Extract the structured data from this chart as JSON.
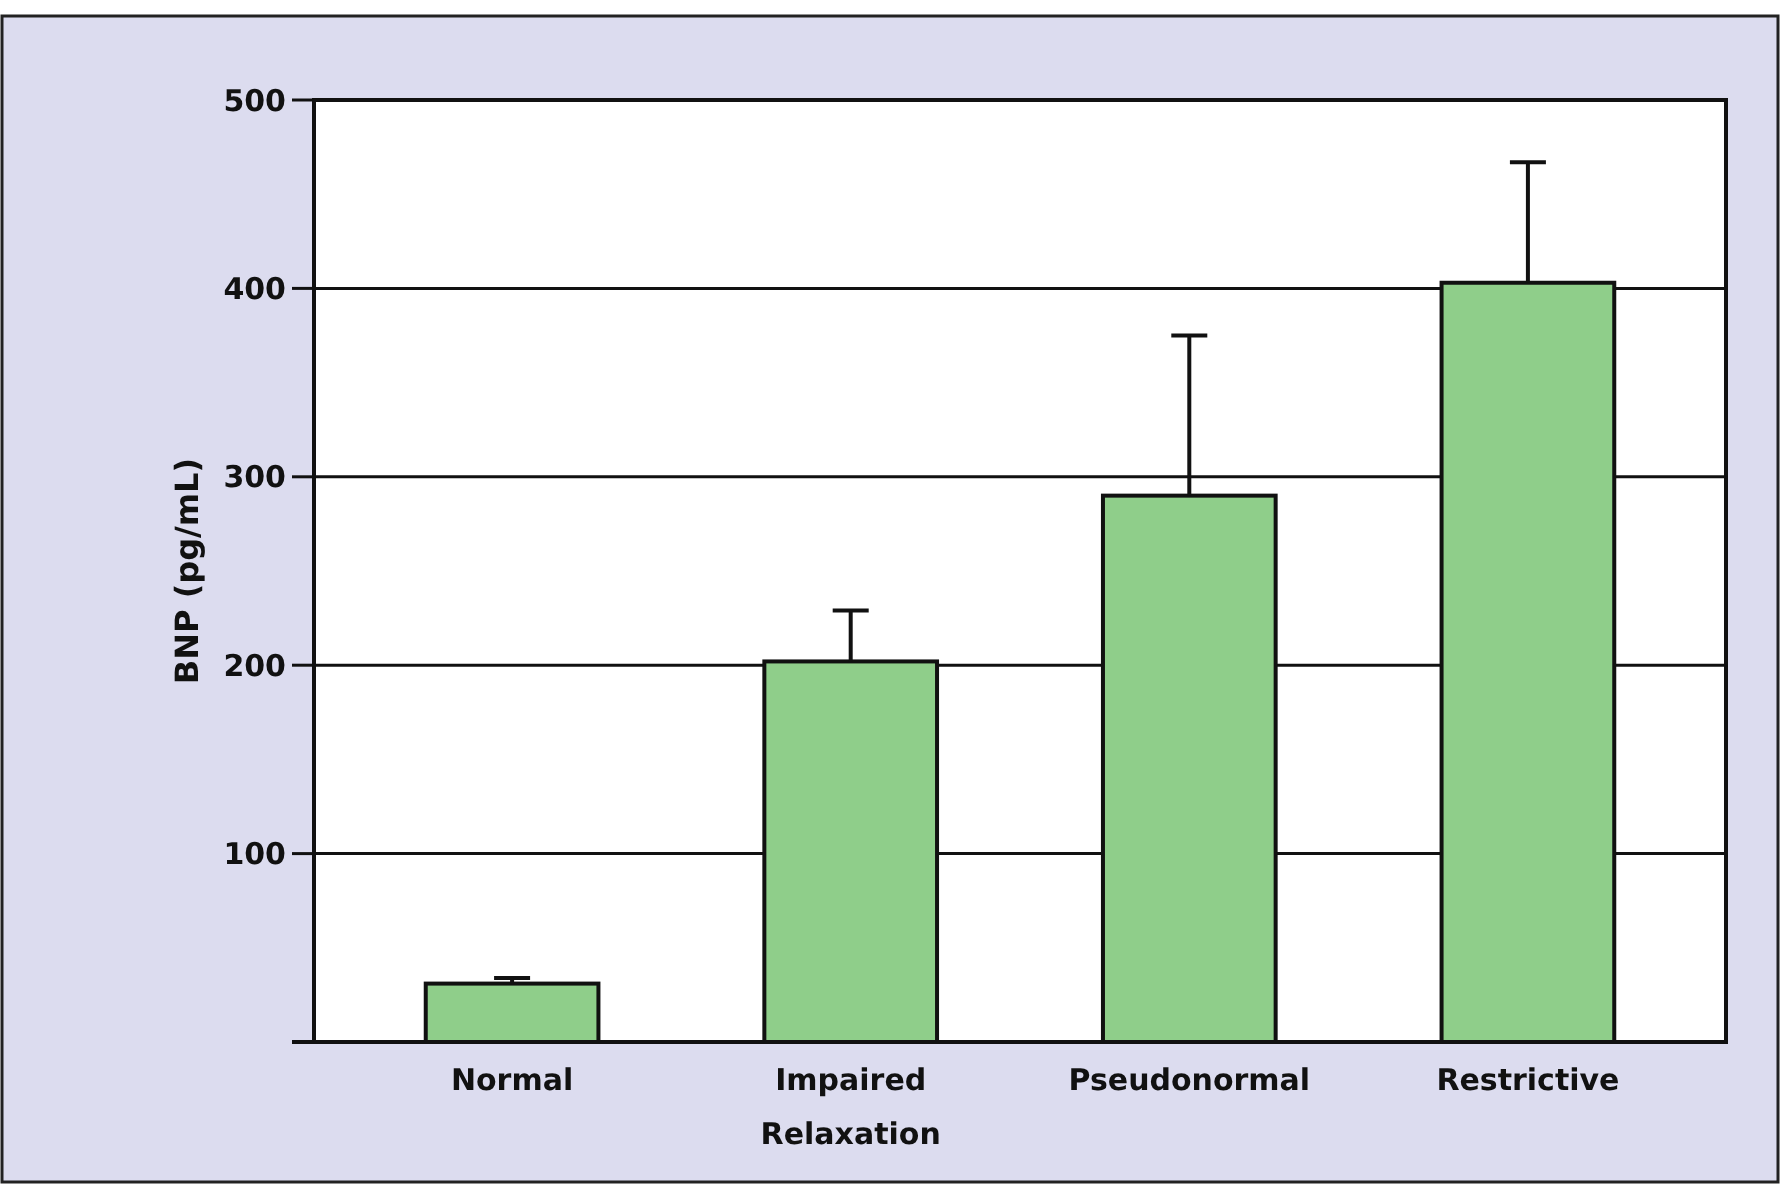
{
  "chart_data": {
    "type": "bar",
    "ylabel": "BNP (pg/mL)",
    "categories": [
      "Normal",
      "Impaired Relaxation",
      "Pseudonormal",
      "Restrictive"
    ],
    "values": [
      31,
      202,
      290,
      403
    ],
    "errors": [
      [
        31,
        34
      ],
      [
        202,
        229
      ],
      [
        290,
        375
      ],
      [
        403,
        467
      ]
    ],
    "color": "#8fce8a",
    "ylim": [
      0,
      500
    ],
    "yticks": [
      100,
      200,
      300,
      400,
      500
    ],
    "grid": "y"
  }
}
